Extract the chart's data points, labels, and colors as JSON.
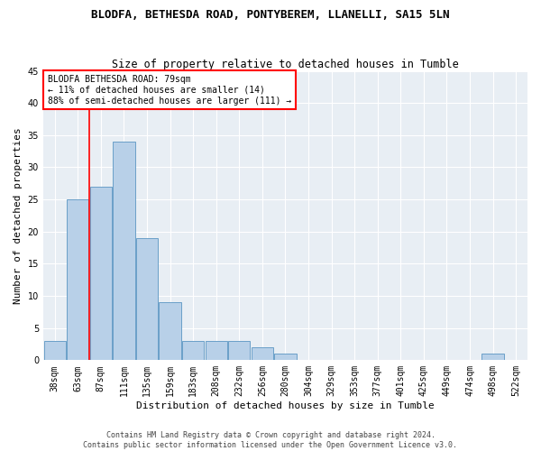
{
  "title": "BLODFA, BETHESDA ROAD, PONTYBEREM, LLANELLI, SA15 5LN",
  "subtitle": "Size of property relative to detached houses in Tumble",
  "xlabel": "Distribution of detached houses by size in Tumble",
  "ylabel": "Number of detached properties",
  "bins": [
    "38sqm",
    "63sqm",
    "87sqm",
    "111sqm",
    "135sqm",
    "159sqm",
    "183sqm",
    "208sqm",
    "232sqm",
    "256sqm",
    "280sqm",
    "304sqm",
    "329sqm",
    "353sqm",
    "377sqm",
    "401sqm",
    "425sqm",
    "449sqm",
    "474sqm",
    "498sqm",
    "522sqm"
  ],
  "values": [
    3,
    25,
    27,
    34,
    19,
    9,
    3,
    3,
    3,
    2,
    1,
    0,
    0,
    0,
    0,
    0,
    0,
    0,
    0,
    1,
    0
  ],
  "bar_color": "#b8d0e8",
  "bar_edge_color": "#6aa0c8",
  "red_line_x": 1.5,
  "ylim": [
    0,
    45
  ],
  "yticks": [
    0,
    5,
    10,
    15,
    20,
    25,
    30,
    35,
    40,
    45
  ],
  "annotation_title": "BLODFA BETHESDA ROAD: 79sqm",
  "annotation_line2": "← 11% of detached houses are smaller (14)",
  "annotation_line3": "88% of semi-detached houses are larger (111) →",
  "footer1": "Contains HM Land Registry data © Crown copyright and database right 2024.",
  "footer2": "Contains public sector information licensed under the Open Government Licence v3.0.",
  "bg_color": "#e8eef4",
  "title_fontsize": 9,
  "subtitle_fontsize": 8.5,
  "ann_fontsize": 7,
  "ylabel_fontsize": 8,
  "xlabel_fontsize": 8,
  "tick_fontsize": 7,
  "footer_fontsize": 6
}
